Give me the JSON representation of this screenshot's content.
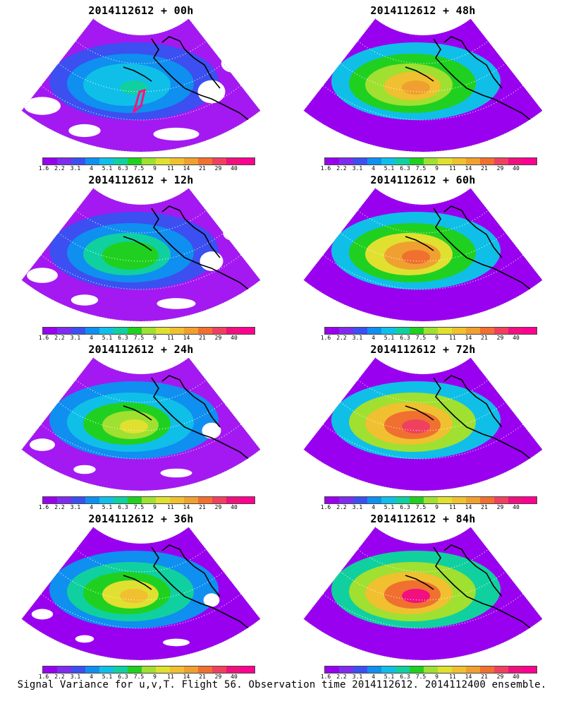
{
  "panels": [
    {
      "title": "2014112612 + 00h",
      "intensity": 0.35,
      "track": true
    },
    {
      "title": "2014112612 + 48h",
      "intensity": 0.72,
      "track": false
    },
    {
      "title": "2014112612 + 12h",
      "intensity": 0.45,
      "track": false
    },
    {
      "title": "2014112612 + 60h",
      "intensity": 0.78,
      "track": false
    },
    {
      "title": "2014112612 + 24h",
      "intensity": 0.55,
      "track": false
    },
    {
      "title": "2014112612 + 72h",
      "intensity": 0.86,
      "track": false
    },
    {
      "title": "2014112612 + 36h",
      "intensity": 0.62,
      "track": false
    },
    {
      "title": "2014112612 + 84h",
      "intensity": 0.92,
      "track": false
    }
  ],
  "colorbar": {
    "colors": [
      "#9a00f0",
      "#7f2cf0",
      "#3c4ff0",
      "#0f8ff0",
      "#0fbfe8",
      "#10d0a0",
      "#20d020",
      "#a0e030",
      "#e0e030",
      "#f0c030",
      "#f0a030",
      "#f07030",
      "#f04060",
      "#f01080",
      "#ff0090"
    ],
    "ticks": [
      "1.6",
      "2.2",
      "3.1",
      "4",
      "5.1",
      "6.3",
      "7.5",
      "9",
      "11",
      "14",
      "21",
      "29",
      "40"
    ]
  },
  "footer": "Signal Variance for u,v,T. Flight 56. Observation time 2014112612. 2014112400 ensemble."
}
